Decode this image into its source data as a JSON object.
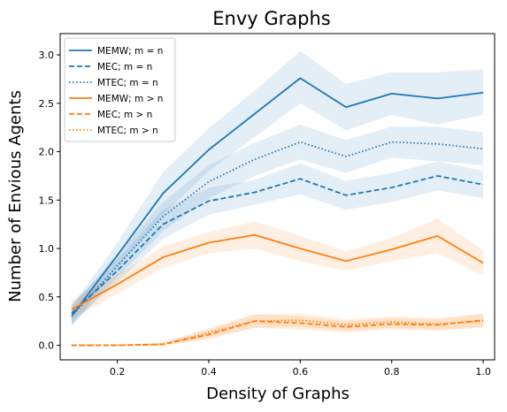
{
  "chart_data": {
    "type": "line",
    "title": "Envy Graphs",
    "xlabel": "Density of Graphs",
    "ylabel": "Number of Envious Agents",
    "xlim": [
      0.075,
      1.025
    ],
    "ylim": [
      -0.15,
      3.22
    ],
    "xticks": [
      0.2,
      0.4,
      0.6,
      0.8,
      1.0
    ],
    "xtick_labels": [
      "0.2",
      "0.4",
      "0.6",
      "0.8",
      "1.0"
    ],
    "yticks": [
      0.0,
      0.5,
      1.0,
      1.5,
      2.0,
      2.5,
      3.0
    ],
    "ytick_labels": [
      "0.0",
      "0.5",
      "1.0",
      "1.5",
      "2.0",
      "2.5",
      "3.0"
    ],
    "grid": false,
    "legend_position": "top-left",
    "x": [
      0.1,
      0.2,
      0.3,
      0.4,
      0.5,
      0.6,
      0.7,
      0.8,
      0.9,
      1.0
    ],
    "series": [
      {
        "name": "MEMW; m = n",
        "color": "#1f77b4",
        "dash": "solid",
        "values": [
          0.3,
          0.93,
          1.57,
          2.02,
          2.39,
          2.76,
          2.46,
          2.6,
          2.55,
          2.61
        ],
        "lower": [
          0.2,
          0.8,
          1.35,
          1.8,
          2.15,
          2.5,
          2.22,
          2.38,
          2.28,
          2.38
        ],
        "upper": [
          0.4,
          1.06,
          1.79,
          2.24,
          2.63,
          3.04,
          2.7,
          2.82,
          2.82,
          2.85
        ]
      },
      {
        "name": "MEC; m = n",
        "color": "#1f77b4",
        "dash": "dashed",
        "values": [
          0.33,
          0.77,
          1.25,
          1.49,
          1.58,
          1.72,
          1.55,
          1.63,
          1.75,
          1.66
        ],
        "lower": [
          0.23,
          0.65,
          1.1,
          1.35,
          1.45,
          1.56,
          1.4,
          1.48,
          1.6,
          1.52
        ],
        "upper": [
          0.43,
          0.89,
          1.4,
          1.63,
          1.71,
          1.88,
          1.7,
          1.78,
          1.9,
          1.8
        ]
      },
      {
        "name": "MTEC; m = n",
        "color": "#1f77b4",
        "dash": "dotted",
        "values": [
          0.3,
          0.82,
          1.33,
          1.69,
          1.92,
          2.1,
          1.95,
          2.1,
          2.08,
          2.03
        ],
        "lower": [
          0.2,
          0.7,
          1.18,
          1.52,
          1.75,
          1.92,
          1.78,
          1.94,
          1.9,
          1.86
        ],
        "upper": [
          0.4,
          0.94,
          1.48,
          1.86,
          2.09,
          2.28,
          2.12,
          2.26,
          2.26,
          2.2
        ]
      },
      {
        "name": "MEMW; m > n",
        "color": "#ff7f0e",
        "dash": "solid",
        "values": [
          0.37,
          0.63,
          0.91,
          1.06,
          1.14,
          1.0,
          0.87,
          0.99,
          1.13,
          0.85
        ],
        "lower": [
          0.27,
          0.53,
          0.8,
          0.95,
          1.0,
          0.87,
          0.77,
          0.87,
          0.95,
          0.72
        ],
        "upper": [
          0.47,
          0.73,
          1.02,
          1.17,
          1.28,
          1.13,
          0.97,
          1.11,
          1.31,
          0.98
        ]
      },
      {
        "name": "MEC; m > n",
        "color": "#ff7f0e",
        "dash": "dashed",
        "values": [
          0.0,
          0.0,
          0.01,
          0.11,
          0.25,
          0.23,
          0.19,
          0.22,
          0.21,
          0.26
        ],
        "lower": [
          0.0,
          0.0,
          0.0,
          0.06,
          0.18,
          0.16,
          0.13,
          0.16,
          0.15,
          0.19
        ],
        "upper": [
          0.0,
          0.0,
          0.03,
          0.16,
          0.32,
          0.3,
          0.25,
          0.28,
          0.27,
          0.33
        ]
      },
      {
        "name": "MTEC; m > n",
        "color": "#ff7f0e",
        "dash": "dotted",
        "values": [
          0.0,
          0.0,
          0.01,
          0.13,
          0.25,
          0.26,
          0.21,
          0.24,
          0.22,
          0.25
        ],
        "lower": [
          0.0,
          0.0,
          0.0,
          0.08,
          0.18,
          0.19,
          0.15,
          0.18,
          0.16,
          0.18
        ],
        "upper": [
          0.0,
          0.0,
          0.03,
          0.18,
          0.32,
          0.33,
          0.27,
          0.3,
          0.28,
          0.32
        ]
      }
    ]
  }
}
